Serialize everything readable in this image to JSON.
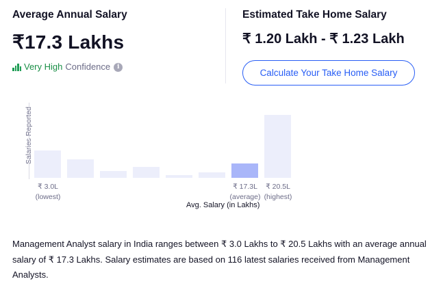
{
  "average": {
    "title": "Average Annual Salary",
    "value": "₹17.3 Lakhs",
    "confidence_level": "Very High",
    "confidence_word": "Confidence",
    "info_glyph": "i"
  },
  "take_home": {
    "title": "Estimated Take Home Salary",
    "value": "₹ 1.20 Lakh - ₹ 1.23 Lakh",
    "button_label": "Calculate Your Take Home Salary"
  },
  "chart_data": {
    "type": "bar",
    "ylabel": "Salaries Reported",
    "xlabel": "Avg. Salary (in Lakhs)",
    "bars": [
      {
        "value": 0.44,
        "active": false
      },
      {
        "value": 0.29,
        "active": false
      },
      {
        "value": 0.11,
        "active": false
      },
      {
        "value": 0.17,
        "active": false
      },
      {
        "value": 0.04,
        "active": false
      },
      {
        "value": 0.09,
        "active": false
      },
      {
        "value": 0.23,
        "active": true
      },
      {
        "value": 1.0,
        "active": false
      }
    ],
    "ticks": [
      {
        "value": "₹ 3.0L",
        "note": "(lowest)"
      },
      {
        "value": "₹ 17.3L",
        "note": "(average)"
      },
      {
        "value": "₹ 20.5L",
        "note": "(highest)"
      }
    ]
  },
  "description": "Management Analyst salary in India ranges between ₹ 3.0 Lakhs to ₹ 20.5 Lakhs with an average annual salary of ₹ 17.3 Lakhs. Salary estimates are based on 116 latest salaries received from Management Analysts.",
  "colors": {
    "accent": "#275df5",
    "confidence": "#1a8f47",
    "bar": "#eceefb",
    "bar_active": "#a9b6f9"
  }
}
